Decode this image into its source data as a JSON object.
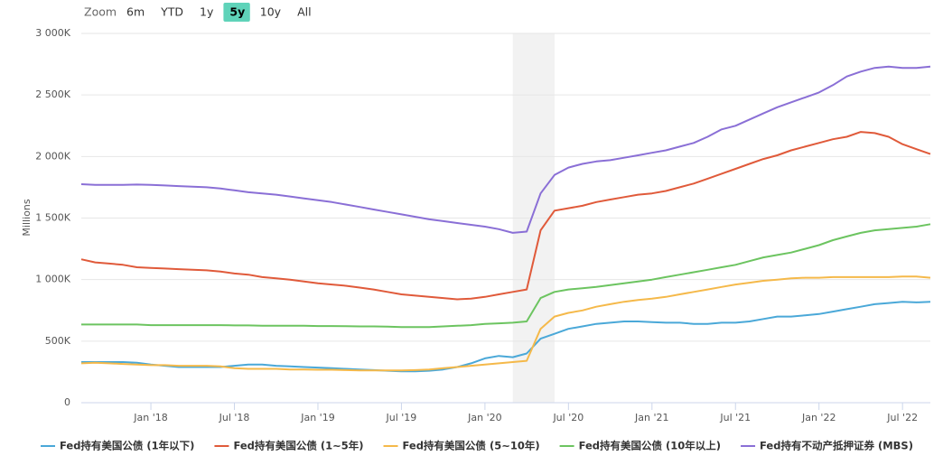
{
  "chart_data": {
    "type": "line",
    "range_selector": {
      "title": "Zoom",
      "buttons": [
        {
          "label": "6m"
        },
        {
          "label": "YTD"
        },
        {
          "label": "1y"
        },
        {
          "label": "5y",
          "active": true
        },
        {
          "label": "10y"
        },
        {
          "label": "All"
        }
      ]
    },
    "y_label": "Millions",
    "x": [
      "2017-08",
      "2017-09",
      "2017-10",
      "2017-11",
      "2017-12",
      "2018-01",
      "2018-02",
      "2018-03",
      "2018-04",
      "2018-05",
      "2018-06",
      "2018-07",
      "2018-08",
      "2018-09",
      "2018-10",
      "2018-11",
      "2018-12",
      "2019-01",
      "2019-02",
      "2019-03",
      "2019-04",
      "2019-05",
      "2019-06",
      "2019-07",
      "2019-08",
      "2019-09",
      "2019-10",
      "2019-11",
      "2019-12",
      "2020-01",
      "2020-02",
      "2020-03",
      "2020-04",
      "2020-05",
      "2020-06",
      "2020-07",
      "2020-08",
      "2020-09",
      "2020-10",
      "2020-11",
      "2020-12",
      "2021-01",
      "2021-02",
      "2021-03",
      "2021-04",
      "2021-05",
      "2021-06",
      "2021-07",
      "2021-08",
      "2021-09",
      "2021-10",
      "2021-11",
      "2021-12",
      "2022-01",
      "2022-02",
      "2022-03",
      "2022-04",
      "2022-05",
      "2022-06",
      "2022-07",
      "2022-08",
      "2022-09"
    ],
    "xlim": [
      "2017-08",
      "2022-09"
    ],
    "xticks": [
      {
        "value": "2018-01",
        "label": "Jan '18"
      },
      {
        "value": "2018-07",
        "label": "Jul '18"
      },
      {
        "value": "2019-01",
        "label": "Jan '19"
      },
      {
        "value": "2019-07",
        "label": "Jul '19"
      },
      {
        "value": "2020-01",
        "label": "Jan '20"
      },
      {
        "value": "2020-07",
        "label": "Jul '20"
      },
      {
        "value": "2021-01",
        "label": "Jan '21"
      },
      {
        "value": "2021-07",
        "label": "Jul '21"
      },
      {
        "value": "2022-01",
        "label": "Jan '22"
      },
      {
        "value": "2022-07",
        "label": "Jul '22"
      }
    ],
    "ylim": [
      0,
      3000000
    ],
    "yticks": [
      0,
      {
        "value": 500000,
        "label": "500K"
      },
      {
        "value": 1000000,
        "label": "1 000K"
      },
      {
        "value": 1500000,
        "label": "1 500K"
      },
      {
        "value": 2000000,
        "label": "2 000K"
      },
      {
        "value": 2500000,
        "label": "2 500K"
      },
      {
        "value": 3000000,
        "label": "3 000K"
      }
    ],
    "grid": true,
    "plot_bands": [
      {
        "from": "2020-03",
        "to": "2020-06",
        "color": "#f2f2f2"
      }
    ],
    "legend": "bottom",
    "series": [
      {
        "name": "Fed持有美国公债 (1年以下)",
        "color": "#4aa8d8",
        "values": [
          330000,
          330000,
          330000,
          330000,
          325000,
          310000,
          300000,
          290000,
          290000,
          290000,
          290000,
          300000,
          310000,
          310000,
          300000,
          295000,
          290000,
          285000,
          280000,
          275000,
          270000,
          265000,
          260000,
          255000,
          255000,
          260000,
          270000,
          290000,
          320000,
          360000,
          380000,
          370000,
          400000,
          520000,
          560000,
          600000,
          620000,
          640000,
          650000,
          660000,
          660000,
          655000,
          650000,
          650000,
          640000,
          640000,
          650000,
          650000,
          660000,
          680000,
          700000,
          700000,
          710000,
          720000,
          740000,
          760000,
          780000,
          800000,
          810000,
          820000,
          815000,
          820000
        ]
      },
      {
        "name": "Fed持有美国公债 (1~5年)",
        "color": "#e05a3a",
        "values": [
          1165000,
          1140000,
          1130000,
          1120000,
          1100000,
          1095000,
          1090000,
          1085000,
          1080000,
          1075000,
          1065000,
          1050000,
          1040000,
          1020000,
          1010000,
          1000000,
          985000,
          970000,
          960000,
          950000,
          935000,
          920000,
          900000,
          880000,
          870000,
          860000,
          850000,
          840000,
          845000,
          860000,
          880000,
          900000,
          920000,
          1400000,
          1560000,
          1580000,
          1600000,
          1630000,
          1650000,
          1670000,
          1690000,
          1700000,
          1720000,
          1750000,
          1780000,
          1820000,
          1860000,
          1900000,
          1940000,
          1980000,
          2010000,
          2050000,
          2080000,
          2110000,
          2140000,
          2160000,
          2200000,
          2190000,
          2160000,
          2100000,
          2060000,
          2020000
        ]
      },
      {
        "name": "Fed持有美国公债 (5~10年)",
        "color": "#f5b94a",
        "values": [
          320000,
          325000,
          320000,
          315000,
          310000,
          305000,
          305000,
          300000,
          300000,
          300000,
          295000,
          280000,
          275000,
          275000,
          275000,
          270000,
          270000,
          268000,
          268000,
          265000,
          262000,
          262000,
          262000,
          262000,
          265000,
          270000,
          280000,
          290000,
          300000,
          310000,
          320000,
          330000,
          340000,
          600000,
          700000,
          730000,
          750000,
          780000,
          800000,
          820000,
          835000,
          845000,
          860000,
          880000,
          900000,
          920000,
          940000,
          960000,
          975000,
          990000,
          1000000,
          1010000,
          1015000,
          1015000,
          1020000,
          1020000,
          1020000,
          1020000,
          1020000,
          1025000,
          1025000,
          1015000
        ]
      },
      {
        "name": "Fed持有美国公债 (10年以上)",
        "color": "#6cc460",
        "values": [
          635000,
          635000,
          635000,
          635000,
          635000,
          630000,
          630000,
          630000,
          630000,
          630000,
          630000,
          628000,
          628000,
          625000,
          625000,
          625000,
          625000,
          623000,
          623000,
          622000,
          620000,
          620000,
          618000,
          615000,
          615000,
          615000,
          620000,
          625000,
          630000,
          640000,
          645000,
          650000,
          660000,
          850000,
          900000,
          920000,
          930000,
          940000,
          955000,
          970000,
          985000,
          1000000,
          1020000,
          1040000,
          1060000,
          1080000,
          1100000,
          1120000,
          1150000,
          1180000,
          1200000,
          1220000,
          1250000,
          1280000,
          1320000,
          1350000,
          1380000,
          1400000,
          1410000,
          1420000,
          1430000,
          1450000
        ]
      },
      {
        "name": "Fed持有不动产抵押证券 (MBS)",
        "color": "#8a6fd6",
        "values": [
          1775000,
          1770000,
          1770000,
          1770000,
          1772000,
          1770000,
          1765000,
          1760000,
          1755000,
          1750000,
          1740000,
          1725000,
          1710000,
          1700000,
          1690000,
          1675000,
          1660000,
          1645000,
          1630000,
          1610000,
          1590000,
          1570000,
          1550000,
          1530000,
          1510000,
          1490000,
          1475000,
          1460000,
          1445000,
          1430000,
          1410000,
          1380000,
          1390000,
          1700000,
          1850000,
          1910000,
          1940000,
          1960000,
          1970000,
          1990000,
          2010000,
          2030000,
          2050000,
          2080000,
          2110000,
          2160000,
          2220000,
          2250000,
          2300000,
          2350000,
          2400000,
          2440000,
          2480000,
          2520000,
          2580000,
          2650000,
          2690000,
          2720000,
          2730000,
          2720000,
          2720000,
          2730000
        ]
      }
    ]
  }
}
